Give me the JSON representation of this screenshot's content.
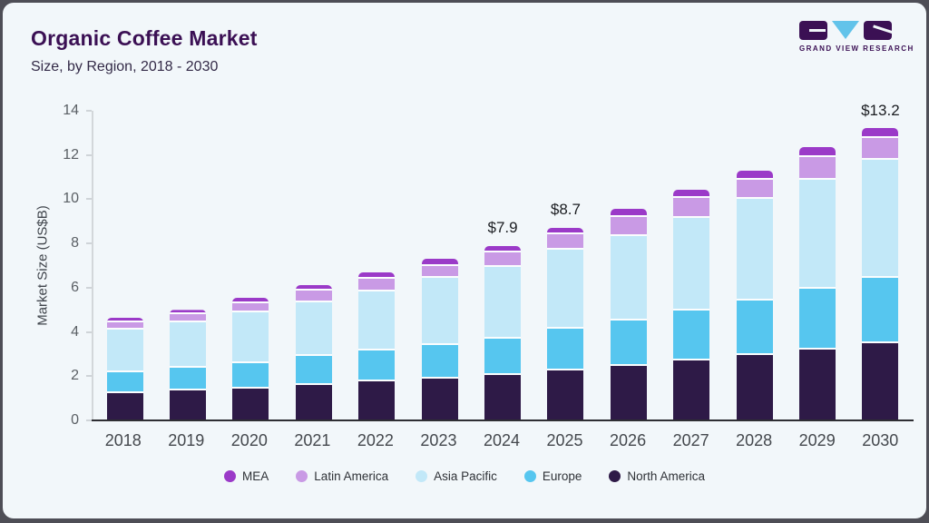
{
  "header": {
    "title": "Organic Coffee Market",
    "subtitle": "Size, by Region, 2018 - 2030",
    "logo_text": "GRAND VIEW RESEARCH"
  },
  "colors": {
    "card_background": "#f2f7fa",
    "frame": "#4e4e56",
    "title_text": "#3b1054",
    "axis_line": "#d3d7da",
    "baseline": "#2e2e33"
  },
  "chart_data": {
    "type": "bar",
    "stacked": true,
    "title": "Organic Coffee Market",
    "subtitle": "Size, by Region, 2018 - 2030",
    "xlabel": "",
    "ylabel": "Market Size (US$B)",
    "ylim": [
      0,
      14
    ],
    "yticks": [
      0,
      2,
      4,
      6,
      8,
      10,
      12,
      14
    ],
    "grid": false,
    "legend_position": "bottom",
    "categories": [
      "2018",
      "2019",
      "2020",
      "2021",
      "2022",
      "2023",
      "2024",
      "2025",
      "2026",
      "2027",
      "2028",
      "2029",
      "2030"
    ],
    "series": [
      {
        "name": "North America",
        "color": "#2e1a47",
        "values": [
          1.25,
          1.35,
          1.45,
          1.6,
          1.75,
          1.9,
          2.05,
          2.25,
          2.45,
          2.7,
          2.95,
          3.2,
          3.5
        ]
      },
      {
        "name": "Europe",
        "color": "#56c6ef",
        "values": [
          0.95,
          1.05,
          1.15,
          1.3,
          1.4,
          1.5,
          1.65,
          1.9,
          2.05,
          2.25,
          2.45,
          2.75,
          2.95
        ]
      },
      {
        "name": "Asia Pacific",
        "color": "#c2e8f8",
        "values": [
          1.9,
          2.05,
          2.3,
          2.45,
          2.7,
          3.05,
          3.25,
          3.55,
          3.85,
          4.2,
          4.6,
          4.95,
          5.35
        ]
      },
      {
        "name": "Latin America",
        "color": "#c99ae5",
        "values": [
          0.35,
          0.35,
          0.4,
          0.5,
          0.55,
          0.55,
          0.65,
          0.7,
          0.85,
          0.9,
          0.9,
          1.0,
          0.95
        ]
      },
      {
        "name": "MEA",
        "color": "#9b3ac8",
        "values": [
          0.2,
          0.2,
          0.25,
          0.25,
          0.3,
          0.3,
          0.3,
          0.3,
          0.35,
          0.4,
          0.4,
          0.45,
          0.45
        ]
      }
    ],
    "totals": [
      4.65,
      5.0,
      5.55,
      6.1,
      6.7,
      7.3,
      7.9,
      8.7,
      9.55,
      10.45,
      11.3,
      12.35,
      13.2
    ],
    "annotations": {
      "2024": "$7.9",
      "2025": "$8.7",
      "2030": "$13.2"
    },
    "legend_order": [
      "MEA",
      "Latin America",
      "Asia Pacific",
      "Europe",
      "North America"
    ]
  }
}
